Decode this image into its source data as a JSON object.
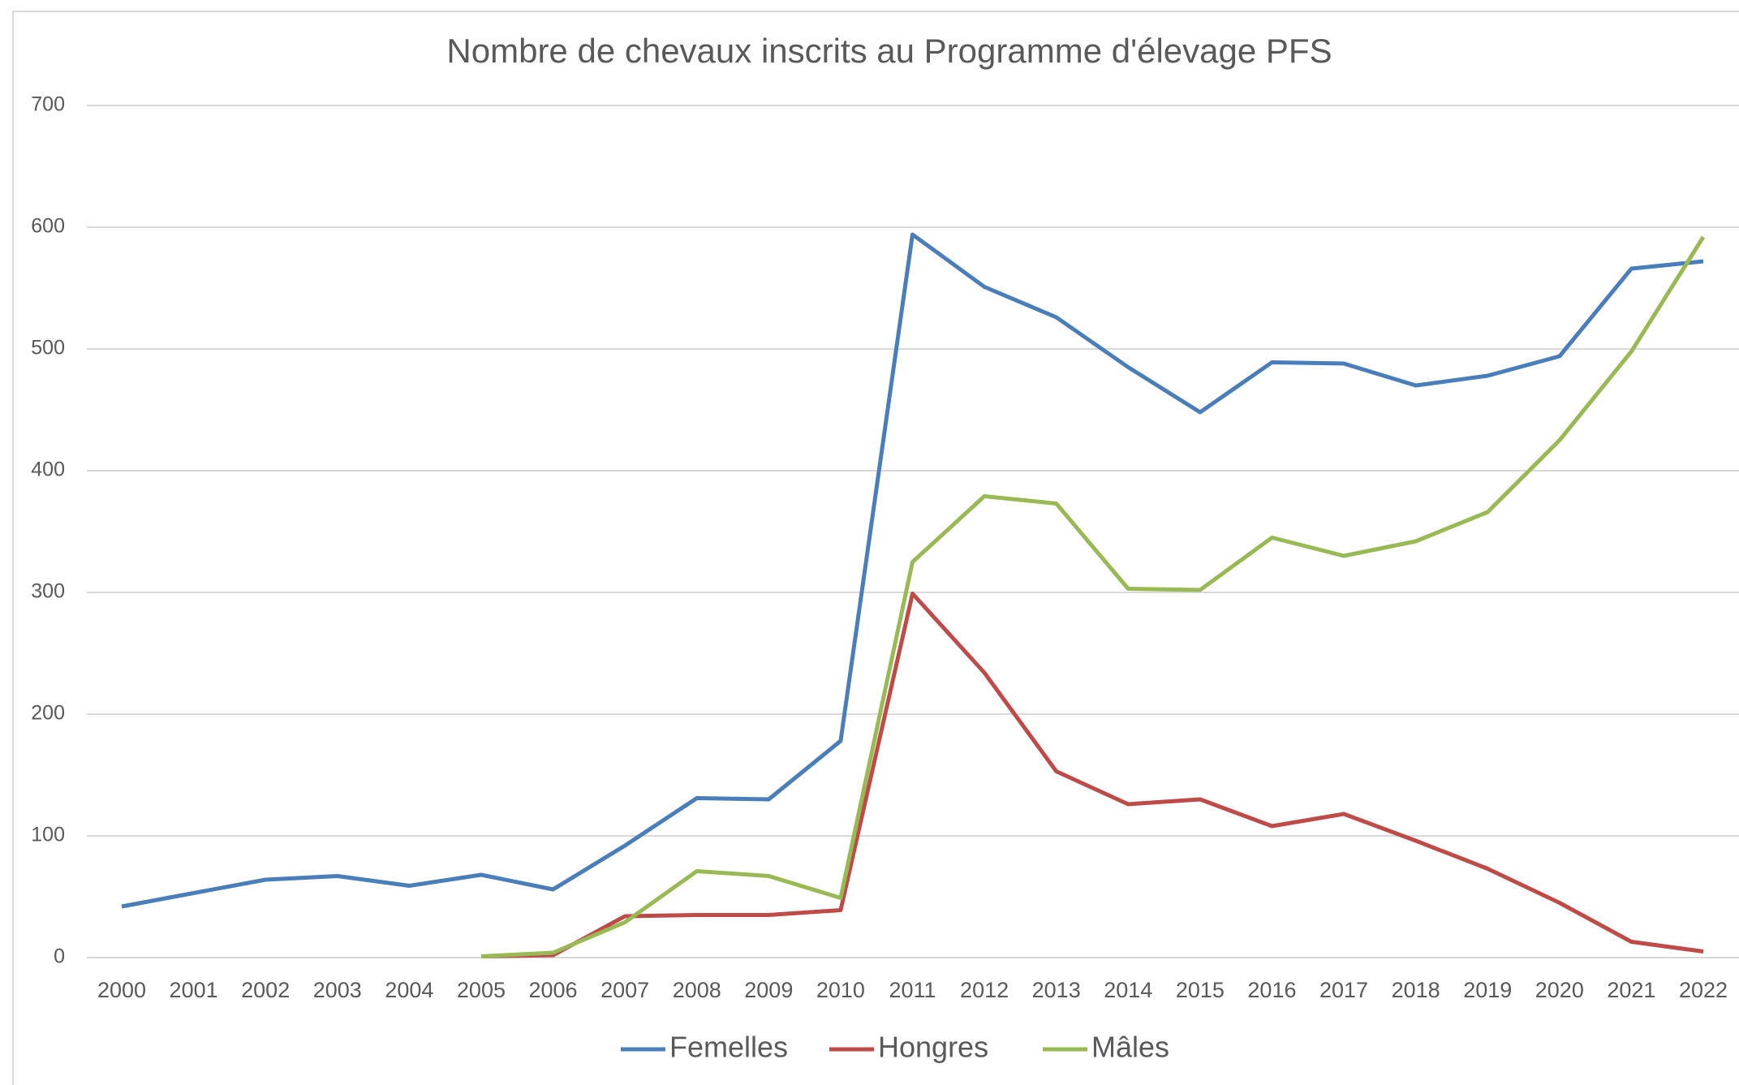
{
  "chart_data": {
    "type": "line",
    "title": "Nombre de chevaux inscrits au Programme d'élevage PFS",
    "categories": [
      "2000",
      "2001",
      "2002",
      "2003",
      "2004",
      "2005",
      "2006",
      "2007",
      "2008",
      "2009",
      "2010",
      "2011",
      "2012",
      "2013",
      "2014",
      "2015",
      "2016",
      "2017",
      "2018",
      "2019",
      "2020",
      "2021",
      "2022"
    ],
    "series": [
      {
        "name": "Femelles",
        "color": "#4a7ebb",
        "values": [
          42,
          53,
          64,
          67,
          59,
          68,
          56,
          92,
          131,
          130,
          178,
          594,
          551,
          526,
          485,
          448,
          489,
          488,
          470,
          478,
          494,
          566,
          572
        ]
      },
      {
        "name": "Hongres",
        "color": "#be4b48",
        "values": [
          null,
          null,
          null,
          null,
          null,
          1,
          2,
          34,
          35,
          35,
          39,
          299,
          234,
          153,
          126,
          130,
          108,
          118,
          96,
          73,
          45,
          13,
          5
        ]
      },
      {
        "name": "Mâles",
        "color": "#98b954",
        "values": [
          null,
          null,
          null,
          null,
          null,
          1,
          4,
          29,
          71,
          67,
          49,
          325,
          379,
          373,
          303,
          302,
          345,
          330,
          342,
          366,
          425,
          498,
          592
        ]
      }
    ],
    "ylim": [
      0,
      700
    ],
    "yticks": [
      0,
      100,
      200,
      300,
      400,
      500,
      600,
      700
    ],
    "grid": true,
    "legend": "bottom"
  }
}
